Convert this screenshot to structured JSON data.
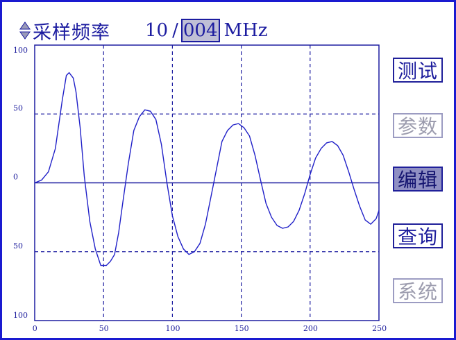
{
  "header": {
    "title": "采样频率",
    "rate_main": "10",
    "rate_sep": "/",
    "rate_sub": "004",
    "rate_unit": "MHz"
  },
  "menu": [
    {
      "label": "测试",
      "state": "normal"
    },
    {
      "label": "参数",
      "state": "disabled"
    },
    {
      "label": "编辑",
      "state": "selected"
    },
    {
      "label": "查询",
      "state": "normal"
    },
    {
      "label": "系统",
      "state": "disabled"
    }
  ],
  "colors": {
    "accent": "#1c1ca0",
    "border": "#1a1ad0",
    "selected_bg": "#8f8fc3",
    "disabled": "#9c9cae"
  },
  "chart_data": {
    "type": "line",
    "y_tick_labels": [
      "100",
      "50",
      "0",
      "50",
      "100"
    ],
    "x_tick_labels": [
      "0",
      "50",
      "100",
      "150",
      "200",
      "250"
    ],
    "xlim": [
      0,
      250
    ],
    "ylim": [
      -100,
      100
    ],
    "grid": true,
    "x": [
      0,
      5,
      10,
      15,
      20,
      23,
      25,
      28,
      30,
      33,
      36,
      40,
      44,
      48,
      52,
      55,
      58,
      61,
      64,
      68,
      72,
      76,
      80,
      84,
      88,
      92,
      96,
      100,
      104,
      108,
      112,
      116,
      120,
      124,
      128,
      132,
      136,
      140,
      144,
      148,
      152,
      156,
      160,
      164,
      168,
      172,
      176,
      180,
      184,
      188,
      192,
      196,
      200,
      204,
      208,
      212,
      216,
      220,
      224,
      228,
      232,
      236,
      240,
      244,
      248,
      250
    ],
    "y": [
      0,
      2,
      8,
      25,
      60,
      78,
      80,
      76,
      66,
      40,
      5,
      -28,
      -48,
      -60,
      -60,
      -57,
      -52,
      -36,
      -14,
      14,
      38,
      48,
      53,
      52,
      46,
      28,
      0,
      -24,
      -39,
      -48,
      -52,
      -50,
      -44,
      -30,
      -10,
      10,
      30,
      38,
      42,
      43,
      40,
      34,
      20,
      2,
      -15,
      -25,
      -31,
      -33,
      -32,
      -28,
      -20,
      -8,
      6,
      18,
      25,
      29,
      30,
      27,
      20,
      8,
      -5,
      -17,
      -27,
      -30,
      -26,
      -20
    ]
  }
}
